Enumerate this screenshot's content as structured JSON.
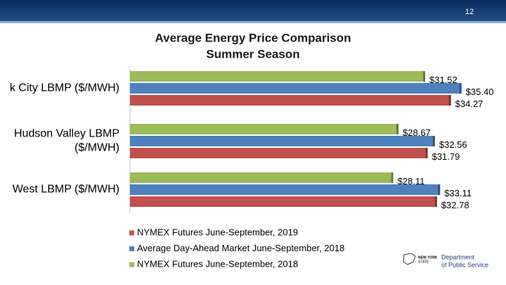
{
  "chart_data": {
    "type": "bar",
    "orientation": "horizontal",
    "page_number": "12",
    "title": [
      "Average Energy Price Comparison",
      "Summer Season"
    ],
    "categories": [
      [
        "k City LBMP ($/MWH)"
      ],
      [
        "Hudson Valley LBMP",
        "($/MWH)"
      ],
      [
        "West LBMP ($/MWH)"
      ]
    ],
    "series": [
      {
        "name": "NYMEX Futures June-September, 2019",
        "color": "#c0504d",
        "values": [
          34.27,
          31.79,
          32.78
        ],
        "value_labels": [
          "$34.27",
          "$31.79",
          "$32.78"
        ]
      },
      {
        "name": "Average Day-Ahead Market June-September, 2018",
        "color": "#4f81bd",
        "values": [
          35.4,
          32.56,
          33.11
        ],
        "value_labels": [
          "$35.40",
          "$32.56",
          "$33.11"
        ]
      },
      {
        "name": "NYMEX Futures June-September, 2018",
        "color": "#9bbb59",
        "values": [
          31.52,
          28.67,
          28.11
        ],
        "value_labels": [
          "$31.52",
          "$28.67",
          "$28.11"
        ]
      }
    ],
    "xlim": [
      0,
      40
    ],
    "logo": [
      "NEW YORK",
      "STATE",
      "Department",
      "of Public Service"
    ]
  }
}
